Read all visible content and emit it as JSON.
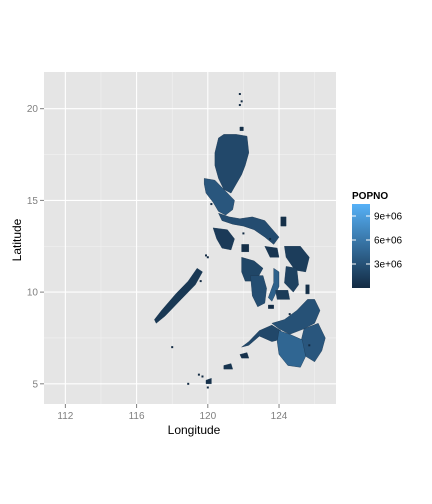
{
  "chart_data": {
    "type": "choropleth-map",
    "xlabel": "Longitude",
    "ylabel": "Latitude",
    "xlim": [
      110.8,
      127.2
    ],
    "ylim": [
      3.9,
      22.0
    ],
    "x_ticks": [
      112,
      116,
      120,
      124
    ],
    "x_tick_labels": [
      "112",
      "116",
      "120",
      "124"
    ],
    "y_ticks": [
      5,
      10,
      15,
      20
    ],
    "y_tick_labels": [
      "5",
      "10",
      "15",
      "20"
    ],
    "grid": true,
    "panel_background": "#e5e5e5",
    "grid_color": "#ffffff",
    "legend": {
      "title": "POPNO",
      "placement": "right",
      "scale_min": 0,
      "scale_max": 10500000,
      "breaks": [
        3000000,
        6000000,
        9000000
      ],
      "break_labels": [
        "3e+06",
        "6e+06",
        "9e+06"
      ],
      "color_low": "#132b43",
      "color_high": "#56b1f7"
    },
    "regions": [
      {
        "id": "luzon-north",
        "value": 2300000,
        "outline": [
          [
            120.6,
            18.4
          ],
          [
            120.9,
            18.6
          ],
          [
            121.6,
            18.6
          ],
          [
            122.2,
            18.5
          ],
          [
            122.3,
            17.6
          ],
          [
            122.1,
            16.9
          ],
          [
            121.9,
            16.4
          ],
          [
            121.6,
            15.9
          ],
          [
            121.3,
            15.4
          ],
          [
            120.9,
            15.6
          ],
          [
            120.6,
            16.2
          ],
          [
            120.4,
            16.9
          ],
          [
            120.4,
            17.6
          ]
        ]
      },
      {
        "id": "luzon-central",
        "value": 3400000,
        "outline": [
          [
            119.8,
            16.2
          ],
          [
            120.4,
            16.1
          ],
          [
            121.0,
            15.5
          ],
          [
            121.5,
            15.0
          ],
          [
            121.4,
            14.5
          ],
          [
            121.0,
            14.2
          ],
          [
            120.6,
            14.4
          ],
          [
            120.3,
            14.9
          ],
          [
            119.9,
            15.4
          ],
          [
            119.8,
            15.9
          ]
        ]
      },
      {
        "id": "luzon-south",
        "value": 2600000,
        "outline": [
          [
            120.6,
            14.3
          ],
          [
            121.2,
            14.1
          ],
          [
            121.8,
            14.0
          ],
          [
            122.5,
            14.1
          ],
          [
            123.2,
            13.9
          ],
          [
            124.0,
            13.0
          ],
          [
            123.7,
            12.6
          ],
          [
            123.2,
            13.0
          ],
          [
            122.6,
            13.4
          ],
          [
            122.0,
            13.6
          ],
          [
            121.4,
            13.7
          ],
          [
            120.8,
            13.9
          ]
        ]
      },
      {
        "id": "mindoro",
        "value": 1200000,
        "outline": [
          [
            120.3,
            13.5
          ],
          [
            121.1,
            13.4
          ],
          [
            121.5,
            12.9
          ],
          [
            121.3,
            12.3
          ],
          [
            120.8,
            12.4
          ],
          [
            120.5,
            12.9
          ]
        ]
      },
      {
        "id": "palawan",
        "value": 1000000,
        "outline": [
          [
            117.1,
            8.3
          ],
          [
            117.6,
            8.7
          ],
          [
            118.5,
            9.6
          ],
          [
            119.3,
            10.4
          ],
          [
            119.7,
            11.1
          ],
          [
            119.4,
            11.3
          ],
          [
            118.9,
            10.6
          ],
          [
            118.2,
            9.9
          ],
          [
            117.4,
            9.0
          ],
          [
            117.0,
            8.5
          ]
        ]
      },
      {
        "id": "panay",
        "value": 2100000,
        "outline": [
          [
            121.9,
            11.9
          ],
          [
            122.6,
            11.7
          ],
          [
            123.1,
            11.3
          ],
          [
            122.7,
            10.6
          ],
          [
            122.1,
            10.6
          ],
          [
            121.9,
            11.1
          ]
        ]
      },
      {
        "id": "negros",
        "value": 2700000,
        "outline": [
          [
            122.4,
            10.9
          ],
          [
            123.1,
            10.9
          ],
          [
            123.3,
            10.2
          ],
          [
            123.2,
            9.4
          ],
          [
            122.8,
            9.2
          ],
          [
            122.5,
            9.8
          ]
        ]
      },
      {
        "id": "cebu",
        "value": 4200000,
        "outline": [
          [
            123.7,
            11.3
          ],
          [
            124.0,
            11.1
          ],
          [
            124.0,
            10.3
          ],
          [
            123.6,
            9.5
          ],
          [
            123.4,
            9.7
          ],
          [
            123.7,
            10.5
          ]
        ]
      },
      {
        "id": "bohol",
        "value": 1300000,
        "outline": [
          [
            123.8,
            10.1
          ],
          [
            124.5,
            10.1
          ],
          [
            124.6,
            9.6
          ],
          [
            123.9,
            9.6
          ]
        ]
      },
      {
        "id": "samar",
        "value": 1400000,
        "outline": [
          [
            124.3,
            12.5
          ],
          [
            125.2,
            12.5
          ],
          [
            125.7,
            11.9
          ],
          [
            125.5,
            11.1
          ],
          [
            124.9,
            11.2
          ],
          [
            124.4,
            11.9
          ]
        ]
      },
      {
        "id": "leyte",
        "value": 1700000,
        "outline": [
          [
            124.4,
            11.4
          ],
          [
            125.0,
            11.3
          ],
          [
            125.1,
            10.4
          ],
          [
            124.8,
            10.0
          ],
          [
            124.3,
            10.5
          ]
        ]
      },
      {
        "id": "masbate",
        "value": 800000,
        "outline": [
          [
            123.2,
            12.5
          ],
          [
            123.9,
            12.4
          ],
          [
            124.0,
            11.9
          ],
          [
            123.5,
            11.9
          ]
        ]
      },
      {
        "id": "mindanao-west",
        "value": 2200000,
        "outline": [
          [
            121.9,
            7.0
          ],
          [
            122.3,
            7.3
          ],
          [
            122.9,
            7.9
          ],
          [
            123.6,
            8.2
          ],
          [
            124.1,
            7.9
          ],
          [
            124.0,
            7.4
          ],
          [
            123.6,
            7.3
          ],
          [
            122.9,
            7.6
          ],
          [
            122.3,
            7.1
          ]
        ]
      },
      {
        "id": "mindanao-north",
        "value": 3000000,
        "outline": [
          [
            123.6,
            8.3
          ],
          [
            124.3,
            8.5
          ],
          [
            125.0,
            9.0
          ],
          [
            125.6,
            9.6
          ],
          [
            126.0,
            9.6
          ],
          [
            126.3,
            9.0
          ],
          [
            126.0,
            8.3
          ],
          [
            125.4,
            8.0
          ],
          [
            124.6,
            7.7
          ],
          [
            124.0,
            8.0
          ]
        ]
      },
      {
        "id": "mindanao-east",
        "value": 3400000,
        "outline": [
          [
            125.4,
            8.0
          ],
          [
            126.2,
            8.3
          ],
          [
            126.6,
            7.5
          ],
          [
            126.4,
            6.8
          ],
          [
            126.0,
            6.2
          ],
          [
            125.5,
            6.5
          ],
          [
            125.2,
            7.2
          ]
        ]
      },
      {
        "id": "mindanao-south",
        "value": 4600000,
        "outline": [
          [
            124.0,
            7.9
          ],
          [
            124.6,
            7.7
          ],
          [
            125.3,
            7.4
          ],
          [
            125.5,
            6.5
          ],
          [
            125.2,
            5.9
          ],
          [
            124.5,
            6.0
          ],
          [
            124.0,
            6.6
          ],
          [
            123.9,
            7.3
          ]
        ]
      },
      {
        "id": "sulu",
        "value": 700000,
        "outline": [
          [
            120.9,
            6.0
          ],
          [
            121.3,
            6.1
          ],
          [
            121.4,
            5.8
          ],
          [
            120.9,
            5.8
          ]
        ]
      },
      {
        "id": "basilan",
        "value": 500000,
        "outline": [
          [
            121.8,
            6.6
          ],
          [
            122.2,
            6.7
          ],
          [
            122.3,
            6.4
          ],
          [
            121.9,
            6.4
          ]
        ]
      },
      {
        "id": "tawi-tawi",
        "value": 400000,
        "outline": [
          [
            119.9,
            5.2
          ],
          [
            120.2,
            5.3
          ],
          [
            120.2,
            5.0
          ],
          [
            119.9,
            5.0
          ]
        ]
      },
      {
        "id": "catanduanes",
        "value": 300000,
        "outline": [
          [
            124.1,
            14.1
          ],
          [
            124.4,
            14.1
          ],
          [
            124.4,
            13.6
          ],
          [
            124.1,
            13.6
          ]
        ]
      },
      {
        "id": "babuyan",
        "value": 200000,
        "outline": [
          [
            121.8,
            19.0
          ],
          [
            122.0,
            19.0
          ],
          [
            122.0,
            18.8
          ],
          [
            121.8,
            18.8
          ]
        ]
      },
      {
        "id": "dinagat",
        "value": 300000,
        "outline": [
          [
            125.5,
            10.4
          ],
          [
            125.7,
            10.4
          ],
          [
            125.7,
            9.9
          ],
          [
            125.5,
            9.9
          ]
        ]
      },
      {
        "id": "romblon",
        "value": 300000,
        "outline": [
          [
            121.9,
            12.6
          ],
          [
            122.3,
            12.6
          ],
          [
            122.3,
            12.2
          ],
          [
            121.9,
            12.2
          ]
        ]
      },
      {
        "id": "siquijor",
        "value": 100000,
        "outline": [
          [
            123.4,
            9.3
          ],
          [
            123.7,
            9.3
          ],
          [
            123.7,
            9.1
          ],
          [
            123.4,
            9.1
          ]
        ]
      }
    ],
    "islets": [
      [
        121.8,
        20.8
      ],
      [
        121.9,
        20.4
      ],
      [
        121.8,
        20.2
      ],
      [
        120.2,
        14.8
      ],
      [
        119.9,
        12.0
      ],
      [
        120.0,
        11.9
      ],
      [
        119.6,
        10.6
      ],
      [
        118.0,
        7.0
      ],
      [
        119.5,
        5.5
      ],
      [
        119.7,
        5.4
      ],
      [
        118.9,
        5.0
      ],
      [
        122.0,
        13.2
      ],
      [
        123.5,
        12.9
      ],
      [
        124.6,
        8.8
      ],
      [
        125.7,
        7.1
      ],
      [
        120.0,
        4.8
      ]
    ]
  }
}
